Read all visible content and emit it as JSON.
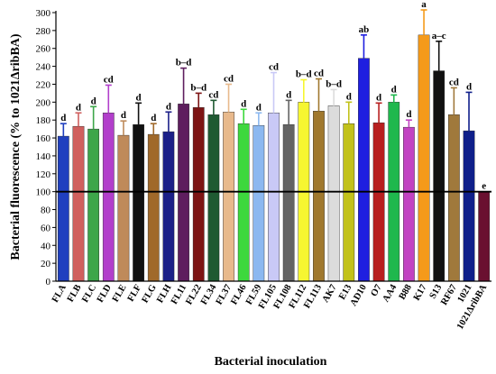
{
  "chart_data": {
    "type": "bar",
    "xlabel": "Bacterial inoculation",
    "ylabel": "Bacterial fluorescence (% to 1021ΔribBA)",
    "ylim": [
      0,
      300
    ],
    "yticks": [
      0,
      20,
      40,
      60,
      80,
      100,
      120,
      140,
      160,
      180,
      200,
      220,
      240,
      260,
      280,
      300
    ],
    "reference_line": 100,
    "grid": false,
    "legend": "none",
    "categories": [
      "FLA",
      "FLB",
      "FLC",
      "FLD",
      "FLE",
      "FLF",
      "FLG",
      "FLH",
      "FL11",
      "FL22",
      "FL34",
      "FL37",
      "FL46",
      "FL59",
      "FL105",
      "FL108",
      "FL112",
      "FL113",
      "AK7",
      "E13",
      "AD10",
      "O7",
      "AA4",
      "B88",
      "K17",
      "S13",
      "RF67",
      "1021",
      "1021ΔribBA"
    ],
    "values": [
      162,
      173,
      170,
      188,
      163,
      175,
      164,
      167,
      198,
      194,
      186,
      189,
      176,
      174,
      188,
      175,
      200,
      190,
      196,
      176,
      249,
      177,
      200,
      172,
      275,
      235,
      186,
      168,
      100
    ],
    "errors": [
      14,
      15,
      25,
      31,
      16,
      24,
      12,
      22,
      40,
      16,
      16,
      31,
      16,
      14,
      45,
      27,
      25,
      36,
      18,
      24,
      26,
      22,
      8,
      8,
      28,
      33,
      30,
      43,
      0
    ],
    "significance": [
      "d",
      "d",
      "d",
      "cd",
      "d",
      "d",
      "d",
      "d",
      "b–d",
      "b–d",
      "cd",
      "cd",
      "d",
      "d",
      "cd",
      "d",
      "b–d",
      "cd",
      "b–d",
      "d",
      "ab",
      "d",
      "d",
      "d",
      "a",
      "a–c",
      "cd",
      "d",
      "e"
    ],
    "colors": [
      "#1f3fbf",
      "#d0605e",
      "#3da64a",
      "#b23fcb",
      "#bf8a5a",
      "#111111",
      "#a0692a",
      "#1c2088",
      "#5e1e5e",
      "#7d1414",
      "#1f5a32",
      "#e8b98c",
      "#3dd83d",
      "#8cb8f0",
      "#c9c9f6",
      "#646464",
      "#f6f631",
      "#a0782e",
      "#dcdcdc",
      "#c2c21a",
      "#1f1fe0",
      "#b81f1f",
      "#1fb84d",
      "#c242c2",
      "#f59a1a",
      "#111111",
      "#a0793c",
      "#0f1f8a",
      "#6a1030"
    ]
  }
}
